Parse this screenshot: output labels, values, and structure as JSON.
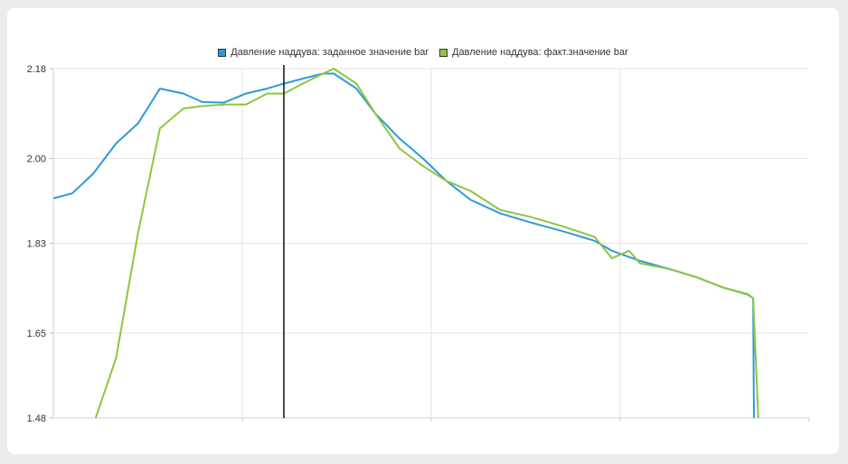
{
  "chart_data": {
    "type": "line",
    "title": "",
    "xlabel": "",
    "ylabel": "",
    "ylim": [
      1.48,
      2.18
    ],
    "yticks": [
      "2.18",
      "2.00",
      "1.83",
      "1.65",
      "1.48"
    ],
    "ytick_values": [
      2.18,
      2.0,
      1.83,
      1.65,
      1.48
    ],
    "xlim": [
      0,
      1
    ],
    "cursor_x": 0.305,
    "grid": true,
    "legend_position": "top",
    "series": [
      {
        "name": "Давление наддува: заданное значение bar",
        "color": "#2b9bd8",
        "x": [
          0.0,
          0.025,
          0.053,
          0.083,
          0.112,
          0.141,
          0.172,
          0.197,
          0.226,
          0.255,
          0.283,
          0.305,
          0.33,
          0.357,
          0.371,
          0.401,
          0.426,
          0.458,
          0.489,
          0.52,
          0.552,
          0.591,
          0.631,
          0.672,
          0.716,
          0.739,
          0.776,
          0.816,
          0.851,
          0.885,
          0.919,
          0.926,
          0.927
        ],
        "y": [
          1.92,
          1.93,
          1.97,
          2.03,
          2.07,
          2.14,
          2.13,
          2.113,
          2.112,
          2.13,
          2.14,
          2.15,
          2.16,
          2.17,
          2.17,
          2.14,
          2.09,
          2.04,
          2.0,
          1.955,
          1.917,
          1.89,
          1.872,
          1.855,
          1.835,
          1.815,
          1.795,
          1.778,
          1.762,
          1.742,
          1.727,
          1.72,
          1.47
        ]
      },
      {
        "name": "Давление наддува: факт.значение bar",
        "color": "#8dc63f",
        "x": [
          0.056,
          0.083,
          0.112,
          0.141,
          0.172,
          0.197,
          0.226,
          0.255,
          0.283,
          0.305,
          0.33,
          0.357,
          0.371,
          0.401,
          0.426,
          0.458,
          0.489,
          0.52,
          0.552,
          0.591,
          0.631,
          0.672,
          0.716,
          0.739,
          0.762,
          0.776,
          0.816,
          0.851,
          0.885,
          0.919,
          0.926,
          0.933
        ],
        "y": [
          1.48,
          1.6,
          1.85,
          2.06,
          2.1,
          2.105,
          2.108,
          2.108,
          2.13,
          2.13,
          2.15,
          2.17,
          2.18,
          2.15,
          2.09,
          2.02,
          1.985,
          1.955,
          1.935,
          1.897,
          1.883,
          1.865,
          1.843,
          1.8,
          1.815,
          1.79,
          1.778,
          1.762,
          1.742,
          1.728,
          1.72,
          1.47
        ]
      }
    ]
  }
}
